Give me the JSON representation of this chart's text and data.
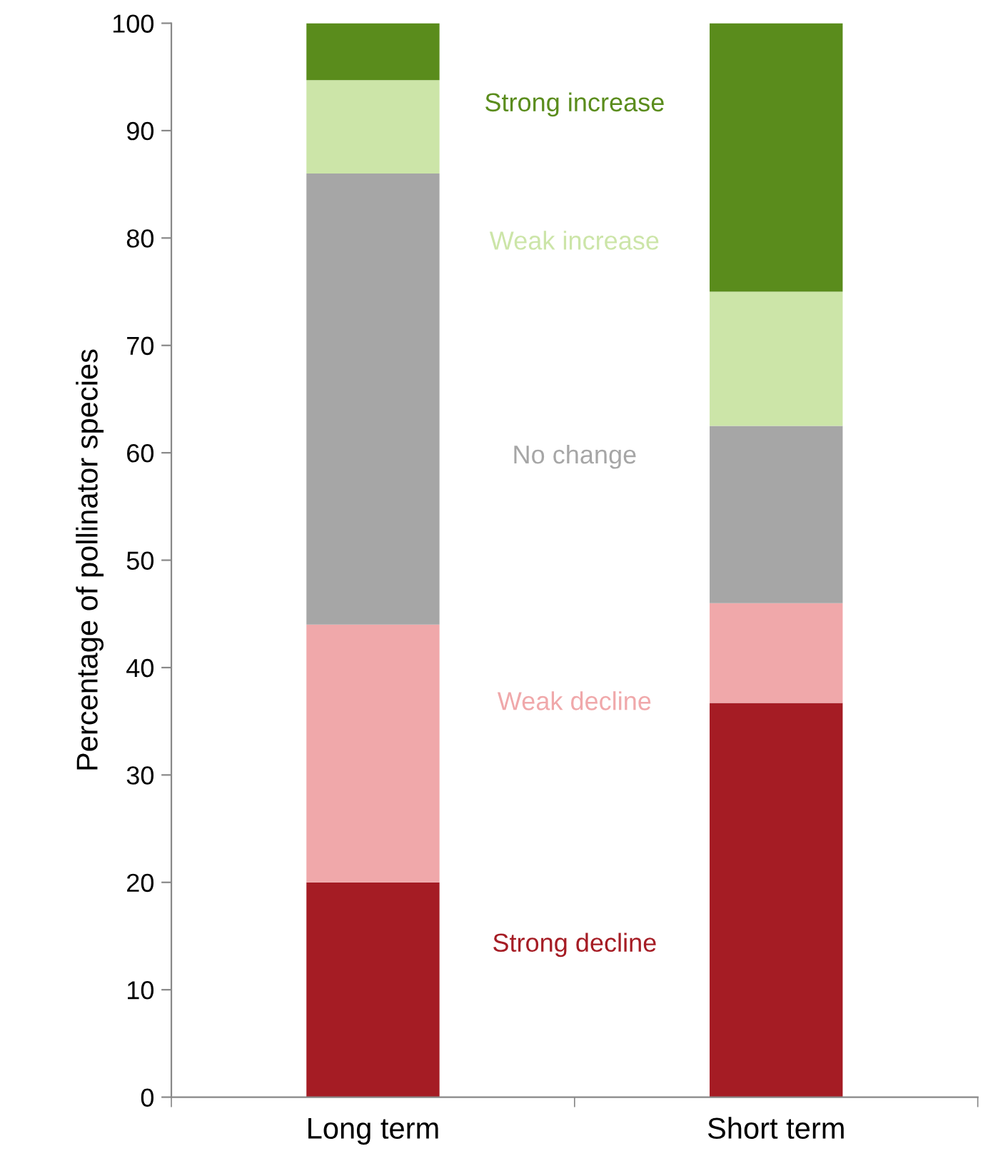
{
  "chart_data": {
    "type": "bar",
    "stacked": true,
    "ylabel": "Percentage of pollinator species",
    "categories": [
      "Long term",
      "Short term"
    ],
    "series": [
      {
        "name": "Strong decline",
        "color": "#a51c24",
        "values": [
          20,
          36.7
        ]
      },
      {
        "name": "Weak decline",
        "color": "#f0a8aa",
        "values": [
          24,
          9.3
        ]
      },
      {
        "name": "No change",
        "color": "#a6a6a6",
        "values": [
          42,
          16.5
        ]
      },
      {
        "name": "Weak increase",
        "color": "#cce5a8",
        "values": [
          8.7,
          12.5
        ]
      },
      {
        "name": "Strong increase",
        "color": "#5a8c1c",
        "values": [
          5.3,
          25
        ]
      }
    ],
    "ylim": [
      0,
      100
    ],
    "yticks": [
      0,
      10,
      20,
      30,
      40,
      50,
      60,
      70,
      80,
      90,
      100
    ],
    "grid": false,
    "legend": false
  }
}
